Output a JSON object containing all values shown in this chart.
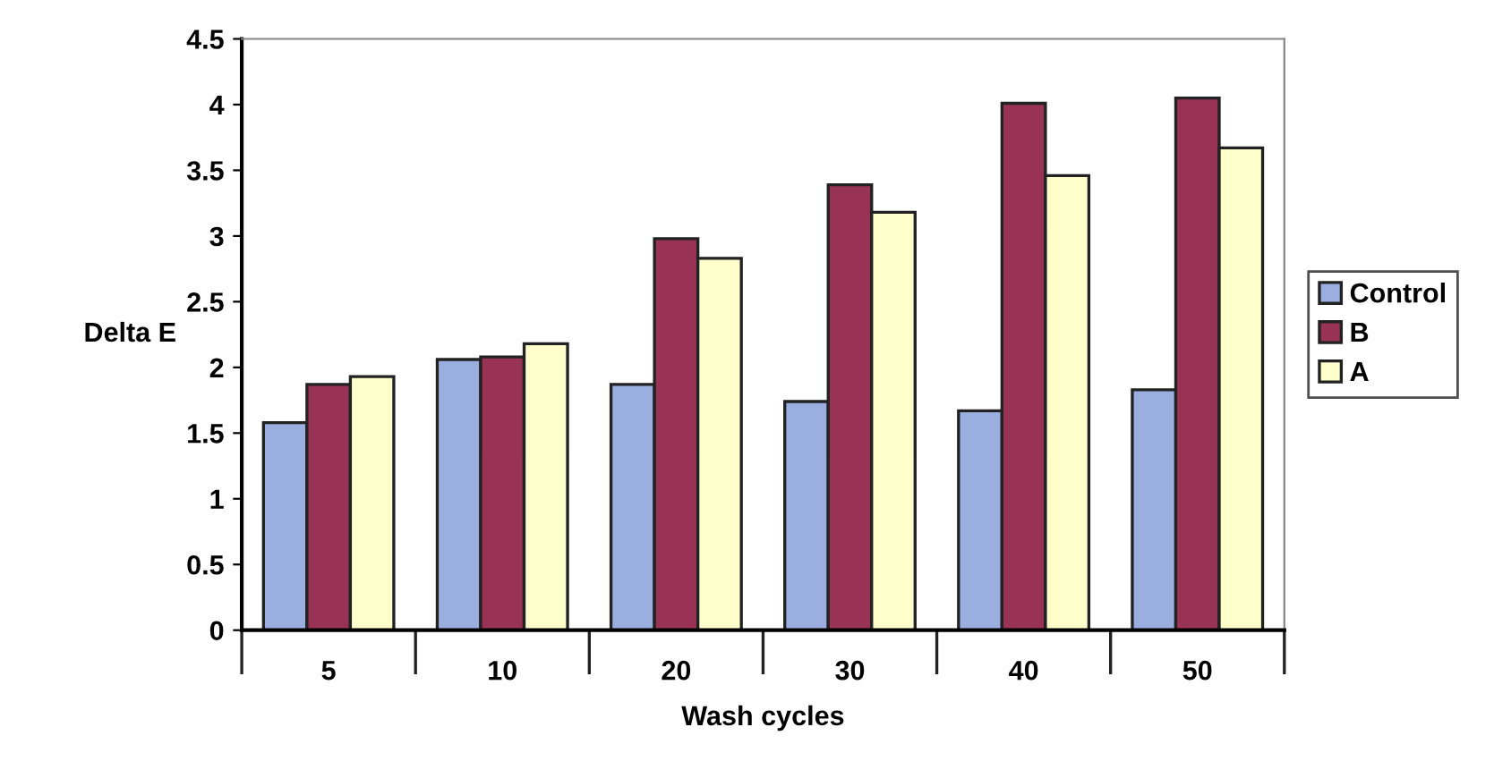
{
  "chart_data": {
    "type": "bar",
    "xlabel": "Wash cycles",
    "ylabel": "Delta E",
    "categories": [
      "5",
      "10",
      "20",
      "30",
      "40",
      "50"
    ],
    "series": [
      {
        "name": "Control",
        "color": "#9aafdf",
        "values": [
          1.58,
          2.06,
          1.87,
          1.74,
          1.67,
          1.83
        ]
      },
      {
        "name": "B",
        "color": "#993355",
        "values": [
          1.87,
          2.08,
          2.98,
          3.39,
          4.01,
          4.05
        ]
      },
      {
        "name": "A",
        "color": "#ffffcc",
        "values": [
          1.93,
          2.18,
          2.83,
          3.18,
          3.46,
          3.67
        ]
      }
    ],
    "ylim": [
      0,
      4.5
    ],
    "yticks": [
      0,
      0.5,
      1,
      1.5,
      2,
      2.5,
      3,
      3.5,
      4,
      4.5
    ],
    "grid": false,
    "legend": "right"
  }
}
